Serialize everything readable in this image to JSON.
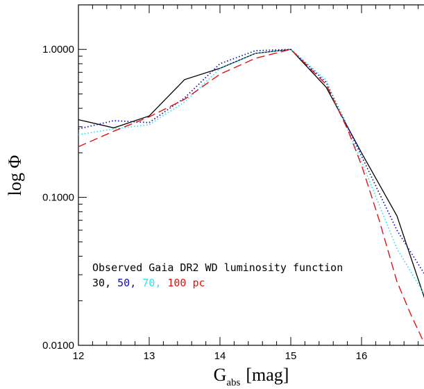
{
  "chart_data": {
    "type": "line",
    "title": "",
    "xlabel": "G",
    "xlabel_subscript": "abs",
    "xlabel_unit": "[mag]",
    "ylabel": "log Φ",
    "xlim": [
      12,
      17
    ],
    "ylim": [
      0.01,
      2.0
    ],
    "yscale": "log",
    "grid": false,
    "x_ticks": [
      "12",
      "13",
      "14",
      "15",
      "16"
    ],
    "y_ticks": [
      {
        "value": 0.01,
        "label": "0.0100"
      },
      {
        "value": 0.1,
        "label": "0.1000"
      },
      {
        "value": 1.0,
        "label": "1.0000"
      }
    ],
    "legend": {
      "placement": "lower-left",
      "title": "Observed Gaia DR2 WD luminosity function",
      "entries": [
        {
          "label": "30",
          "sep": ", ",
          "color": "#000000"
        },
        {
          "label": "50",
          "sep": ", ",
          "color": "#1010b0"
        },
        {
          "label": "70",
          "sep": ", ",
          "color": "#33e0f0"
        },
        {
          "label": "100 pc",
          "sep": "",
          "color": "#e01010"
        }
      ]
    },
    "series": [
      {
        "style": "solid",
        "color": "#000000",
        "x": [
          12.0,
          12.5,
          13.0,
          13.5,
          14.0,
          14.5,
          15.0,
          15.5,
          16.0,
          16.5,
          17.0
        ],
        "y": [
          0.335,
          0.295,
          0.355,
          0.625,
          0.745,
          0.94,
          1.0,
          0.555,
          0.2,
          0.075,
          0.0145
        ]
      },
      {
        "style": "dotted",
        "color": "#1010b0",
        "x": [
          12.0,
          12.5,
          13.0,
          13.5,
          14.0,
          14.5,
          15.0,
          15.5,
          16.0,
          16.5,
          17.0
        ],
        "y": [
          0.29,
          0.33,
          0.32,
          0.47,
          0.8,
          0.98,
          1.0,
          0.6,
          0.19,
          0.06,
          0.025
        ]
      },
      {
        "style": "dotted",
        "color": "#33e0f0",
        "x": [
          12.0,
          12.5,
          13.0,
          13.5,
          14.0,
          14.5,
          15.0,
          15.5,
          16.0,
          16.5,
          17.0
        ],
        "y": [
          0.265,
          0.29,
          0.31,
          0.44,
          0.74,
          0.94,
          1.0,
          0.62,
          0.175,
          0.045,
          0.018
        ]
      },
      {
        "style": "dashed",
        "color": "#e01010",
        "x": [
          12.0,
          12.5,
          13.0,
          13.5,
          14.0,
          14.5,
          15.0,
          15.5,
          15.8,
          16.0,
          16.25,
          16.5,
          16.7,
          16.9
        ],
        "y": [
          0.22,
          0.28,
          0.35,
          0.46,
          0.68,
          0.87,
          1.0,
          0.58,
          0.29,
          0.165,
          0.07,
          0.027,
          0.016,
          0.01
        ]
      }
    ]
  }
}
